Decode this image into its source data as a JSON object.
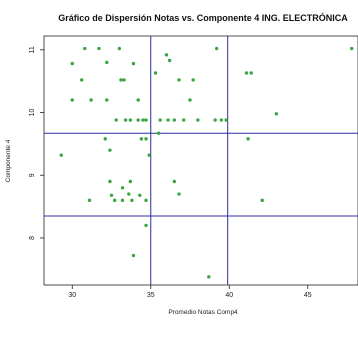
{
  "chart_data": {
    "type": "scatter",
    "title": "Gráfico de Dispersión Notas vs. Componente 4  ING. ELECTRÓNICA",
    "xlabel": "Promedio Notas Comp4",
    "ylabel": "Componente 4",
    "xlim": [
      2.82,
      4.82
    ],
    "ylim": [
      7.25,
      11.22
    ],
    "xticks": [
      3.0,
      3.5,
      4.0,
      4.5
    ],
    "xtick_labels": [
      "30",
      "35",
      "40",
      "45"
    ],
    "yticks": [
      8,
      9,
      10,
      11
    ],
    "ytick_labels": [
      "8",
      "9",
      "10",
      "11"
    ],
    "point_color": "#3aa641",
    "line_color": "#2b2f9e",
    "vlines": [
      3.5,
      3.99
    ],
    "hlines": [
      9.67,
      8.35
    ],
    "points": [
      {
        "x": 3.08,
        "y": 11.02
      },
      {
        "x": 3.17,
        "y": 11.02
      },
      {
        "x": 3.3,
        "y": 11.02
      },
      {
        "x": 3.92,
        "y": 11.02
      },
      {
        "x": 4.78,
        "y": 11.02
      },
      {
        "x": 3.0,
        "y": 10.78
      },
      {
        "x": 3.22,
        "y": 10.8
      },
      {
        "x": 3.39,
        "y": 10.78
      },
      {
        "x": 3.6,
        "y": 10.92
      },
      {
        "x": 3.62,
        "y": 10.83
      },
      {
        "x": 3.53,
        "y": 10.63
      },
      {
        "x": 4.11,
        "y": 10.63
      },
      {
        "x": 4.14,
        "y": 10.63
      },
      {
        "x": 3.06,
        "y": 10.52
      },
      {
        "x": 3.31,
        "y": 10.52
      },
      {
        "x": 3.33,
        "y": 10.52
      },
      {
        "x": 3.68,
        "y": 10.52
      },
      {
        "x": 3.77,
        "y": 10.52
      },
      {
        "x": 3.0,
        "y": 10.2
      },
      {
        "x": 3.12,
        "y": 10.2
      },
      {
        "x": 3.22,
        "y": 10.2
      },
      {
        "x": 3.42,
        "y": 10.2
      },
      {
        "x": 3.75,
        "y": 10.2
      },
      {
        "x": 4.3,
        "y": 9.98
      },
      {
        "x": 3.28,
        "y": 9.88
      },
      {
        "x": 3.34,
        "y": 9.88
      },
      {
        "x": 3.37,
        "y": 9.88
      },
      {
        "x": 3.42,
        "y": 9.88
      },
      {
        "x": 3.45,
        "y": 9.88
      },
      {
        "x": 3.47,
        "y": 9.88
      },
      {
        "x": 3.56,
        "y": 9.88
      },
      {
        "x": 3.61,
        "y": 9.88
      },
      {
        "x": 3.65,
        "y": 9.88
      },
      {
        "x": 3.71,
        "y": 9.88
      },
      {
        "x": 3.8,
        "y": 9.88
      },
      {
        "x": 3.91,
        "y": 9.88
      },
      {
        "x": 3.95,
        "y": 9.88
      },
      {
        "x": 3.98,
        "y": 9.88
      },
      {
        "x": 3.55,
        "y": 9.67
      },
      {
        "x": 3.21,
        "y": 9.58
      },
      {
        "x": 3.44,
        "y": 9.58
      },
      {
        "x": 3.47,
        "y": 9.58
      },
      {
        "x": 4.12,
        "y": 9.58
      },
      {
        "x": 3.24,
        "y": 9.4
      },
      {
        "x": 2.93,
        "y": 9.32
      },
      {
        "x": 3.49,
        "y": 9.32
      },
      {
        "x": 3.24,
        "y": 8.9
      },
      {
        "x": 3.37,
        "y": 8.9
      },
      {
        "x": 3.65,
        "y": 8.9
      },
      {
        "x": 3.32,
        "y": 8.8
      },
      {
        "x": 3.25,
        "y": 8.68
      },
      {
        "x": 3.36,
        "y": 8.7
      },
      {
        "x": 3.43,
        "y": 8.68
      },
      {
        "x": 3.68,
        "y": 8.7
      },
      {
        "x": 3.11,
        "y": 8.6
      },
      {
        "x": 3.27,
        "y": 8.6
      },
      {
        "x": 3.32,
        "y": 8.6
      },
      {
        "x": 3.38,
        "y": 8.6
      },
      {
        "x": 3.47,
        "y": 8.6
      },
      {
        "x": 4.21,
        "y": 8.6
      },
      {
        "x": 3.47,
        "y": 8.2
      },
      {
        "x": 3.39,
        "y": 7.72
      },
      {
        "x": 3.87,
        "y": 7.38
      }
    ]
  }
}
